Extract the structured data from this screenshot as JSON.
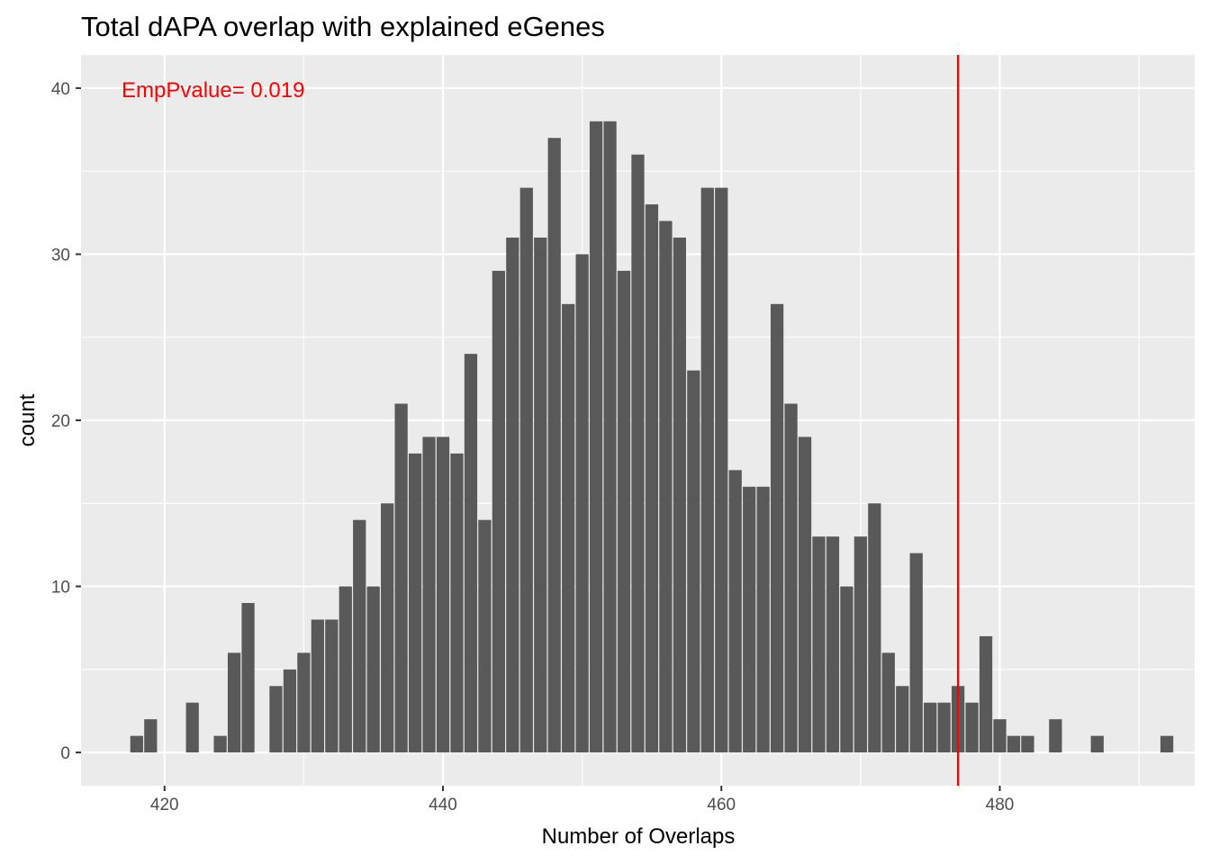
{
  "chart_data": {
    "type": "bar",
    "title": "Total dAPA overlap with explained eGenes",
    "xlabel": "Number of Overlaps",
    "ylabel": "count",
    "xlim": [
      414,
      494
    ],
    "ylim": [
      -2,
      42
    ],
    "xticks": [
      420,
      440,
      460,
      480
    ],
    "yticks": [
      0,
      10,
      20,
      30,
      40
    ],
    "grid": true,
    "bars": {
      "x": [
        418,
        419,
        422,
        424,
        425,
        426,
        428,
        429,
        430,
        431,
        432,
        433,
        434,
        435,
        436,
        437,
        438,
        439,
        440,
        441,
        442,
        443,
        444,
        445,
        446,
        447,
        448,
        449,
        450,
        451,
        452,
        453,
        454,
        455,
        456,
        457,
        458,
        459,
        460,
        461,
        462,
        463,
        464,
        465,
        466,
        467,
        468,
        469,
        470,
        471,
        472,
        473,
        474,
        475,
        476,
        477,
        478,
        479,
        480,
        481,
        482,
        484,
        487,
        492
      ],
      "counts": [
        1,
        2,
        3,
        1,
        6,
        9,
        4,
        5,
        6,
        8,
        8,
        10,
        14,
        10,
        15,
        21,
        18,
        19,
        19,
        18,
        24,
        14,
        29,
        31,
        34,
        31,
        37,
        27,
        30,
        38,
        38,
        29,
        36,
        33,
        32,
        31,
        23,
        34,
        34,
        17,
        16,
        16,
        27,
        21,
        19,
        13,
        13,
        10,
        13,
        15,
        6,
        4,
        12,
        3,
        3,
        4,
        3,
        7,
        2,
        1,
        1,
        2,
        1,
        1
      ],
      "color": "#595959"
    },
    "reference_line": {
      "x": 477,
      "color": "#ff0000"
    },
    "annotation": {
      "text": "EmpPvalue= 0.019",
      "color": "#ff0000"
    },
    "panel_background": "#ebebeb",
    "grid_color": "#ffffff"
  }
}
